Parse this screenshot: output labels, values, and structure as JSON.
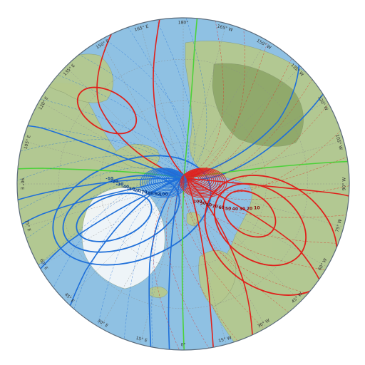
{
  "map": {
    "title": "",
    "colors": {
      "ocean": "#8fc1e3",
      "land": "#b5c98e",
      "land_dark": "#8fa86a",
      "ice": "#f4f7fa",
      "positive": "#e0201b",
      "negative": "#1e6fd9",
      "zero": "#4cd23a",
      "graticule": "#8a8a8a",
      "rim": "#5a6a7a"
    },
    "longitude_labels": [
      {
        "text": "180°",
        "lon": 180
      },
      {
        "text": "165° E",
        "lon": 165
      },
      {
        "text": "150° E",
        "lon": 150
      },
      {
        "text": "135° E",
        "lon": 135
      },
      {
        "text": "120° E",
        "lon": 120
      },
      {
        "text": "105° E",
        "lon": 105
      },
      {
        "text": "90° E",
        "lon": 90
      },
      {
        "text": "75° E",
        "lon": 75
      },
      {
        "text": "60° E",
        "lon": 60
      },
      {
        "text": "45° E",
        "lon": 45
      },
      {
        "text": "30° E",
        "lon": 30
      },
      {
        "text": "15° E",
        "lon": 15
      },
      {
        "text": "0°",
        "lon": 0
      },
      {
        "text": "15° W",
        "lon": -15
      },
      {
        "text": "30° W",
        "lon": -30
      },
      {
        "text": "45° W",
        "lon": -45
      },
      {
        "text": "60° W",
        "lon": -60
      },
      {
        "text": "75° W",
        "lon": -75
      },
      {
        "text": "90° W",
        "lon": -90
      },
      {
        "text": "105° W",
        "lon": -105
      },
      {
        "text": "120° W",
        "lon": -120
      },
      {
        "text": "135° W",
        "lon": -135
      },
      {
        "text": "150° W",
        "lon": -150
      },
      {
        "text": "165° W",
        "lon": -165
      }
    ],
    "contour_labels": {
      "negative": [
        "-10",
        "-20",
        "-30",
        "-40",
        "-50",
        "-60",
        "-70",
        "-80",
        "-90",
        "-100"
      ],
      "positive": [
        "10",
        "20",
        "30",
        "40",
        "50",
        "60",
        "70",
        "80",
        "90",
        "100"
      ]
    }
  }
}
